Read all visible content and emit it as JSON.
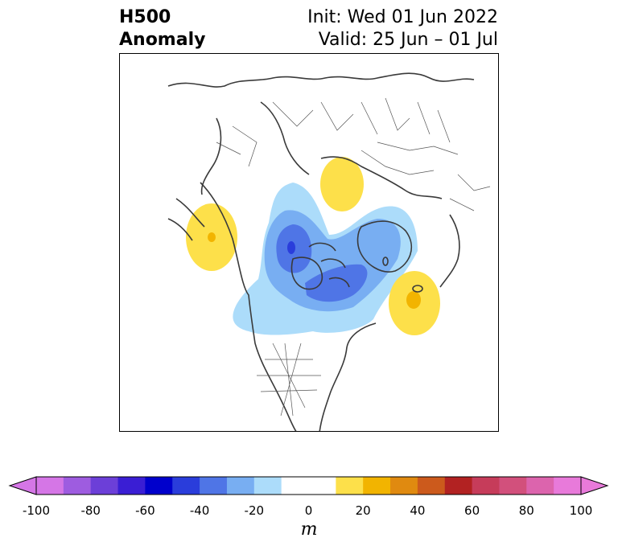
{
  "title": {
    "variable": "H500",
    "kind": "Anomaly",
    "init": "Init: Wed 01 Jun 2022",
    "valid": "Valid: 25 Jun – 01 Jul"
  },
  "colorbar": {
    "unit": "m",
    "ticks": [
      "-100",
      "-80",
      "-60",
      "-40",
      "-20",
      "0",
      "20",
      "40",
      "60",
      "80",
      "100"
    ],
    "colors": [
      "#d576e6",
      "#9e5ce0",
      "#6c3fd8",
      "#3a1ed4",
      "#0000cc",
      "#2a3ddb",
      "#4f75e6",
      "#78aef2",
      "#acdcfa",
      "#ffffff",
      "#ffffff",
      "#fde04a",
      "#f2b400",
      "#e08a10",
      "#cc5a1c",
      "#b22222",
      "#c63c5a",
      "#d2507c",
      "#dc64ad",
      "#e87ada"
    ]
  },
  "map": {
    "coastline_color": "#3a3a3a",
    "anomaly_colors": {
      "neg_10_20": "#acdcfa",
      "neg_20_30": "#78aef2",
      "neg_30_40": "#4f75e6",
      "pos_10_20": "#fde04a",
      "pos_20_30": "#f2b400"
    }
  }
}
